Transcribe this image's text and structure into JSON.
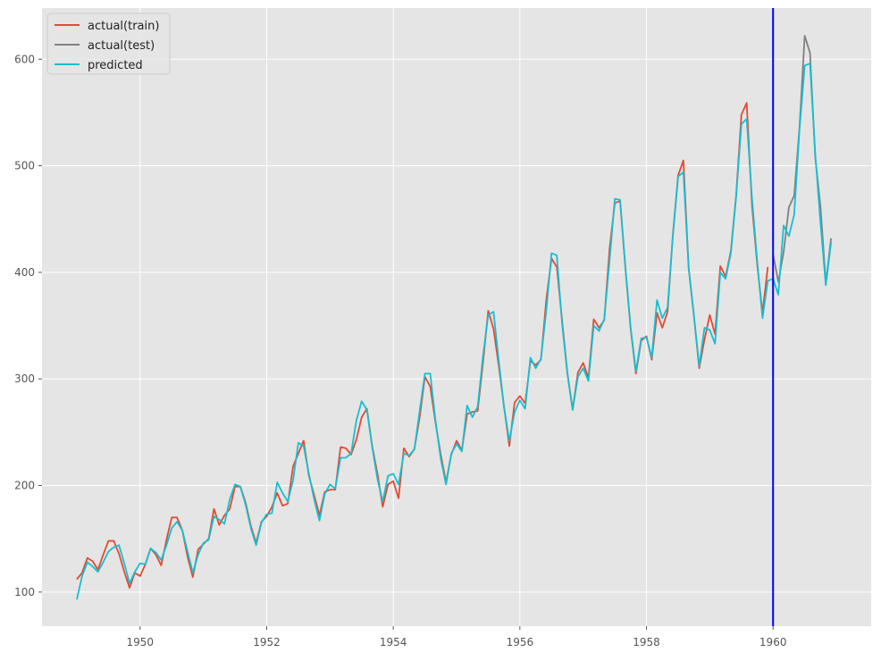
{
  "chart_data": {
    "type": "line",
    "title": "",
    "xlabel": "",
    "ylabel": "",
    "xlim": [
      1948.45,
      1961.55
    ],
    "ylim": [
      68,
      648
    ],
    "x_ticks": [
      1950,
      1952,
      1954,
      1956,
      1958,
      1960
    ],
    "y_ticks": [
      100,
      200,
      300,
      400,
      500,
      600
    ],
    "grid": true,
    "legend_position": "top-left",
    "vline": {
      "x": 1960.0,
      "color": "#0000ff"
    },
    "colors": {
      "background": "#e5e5e5",
      "grid": "#ffffff",
      "tick_label": "#555555",
      "vline": "#0000ff"
    },
    "x_start": 1949.0,
    "x_step": 0.08333333,
    "series": [
      {
        "name": "actual(train)",
        "color": "#e24a33",
        "start_index": 0,
        "values": [
          112,
          118,
          132,
          129,
          121,
          135,
          148,
          148,
          136,
          119,
          104,
          118,
          115,
          126,
          141,
          135,
          125,
          149,
          170,
          170,
          158,
          133,
          114,
          140,
          145,
          150,
          178,
          163,
          172,
          178,
          199,
          199,
          184,
          162,
          146,
          166,
          171,
          180,
          193,
          181,
          183,
          218,
          230,
          242,
          209,
          191,
          172,
          194,
          196,
          196,
          236,
          235,
          229,
          243,
          264,
          272,
          237,
          211,
          180,
          201,
          204,
          188,
          235,
          227,
          234,
          264,
          302,
          293,
          259,
          229,
          203,
          229,
          242,
          233,
          267,
          269,
          270,
          315,
          364,
          347,
          312,
          274,
          237,
          278,
          284,
          277,
          317,
          313,
          318,
          374,
          413,
          405,
          355,
          306,
          271,
          306,
          315,
          301,
          356,
          348,
          355,
          422,
          465,
          467,
          404,
          347,
          305,
          336,
          340,
          318,
          362,
          348,
          363,
          435,
          491,
          505,
          404,
          359,
          310,
          337,
          360,
          342,
          406,
          396,
          420,
          472,
          548,
          559,
          463,
          407,
          362,
          405
        ]
      },
      {
        "name": "actual(test)",
        "color": "#808080",
        "start_index": 132,
        "values": [
          417,
          391,
          419,
          461,
          472,
          535,
          622,
          606,
          508,
          461,
          390,
          432
        ]
      },
      {
        "name": "predicted",
        "color": "#17becf",
        "start_index": 0,
        "values": [
          93,
          115,
          128,
          124,
          119,
          128,
          138,
          142,
          144,
          127,
          108,
          119,
          127,
          126,
          141,
          137,
          130,
          144,
          160,
          166,
          158,
          138,
          118,
          135,
          146,
          149,
          171,
          168,
          164,
          187,
          201,
          199,
          182,
          160,
          144,
          165,
          173,
          174,
          203,
          193,
          185,
          205,
          240,
          237,
          211,
          187,
          167,
          192,
          201,
          197,
          226,
          226,
          230,
          261,
          279,
          271,
          236,
          206,
          185,
          209,
          211,
          201,
          230,
          228,
          234,
          270,
          305,
          305,
          261,
          225,
          201,
          230,
          239,
          232,
          275,
          264,
          274,
          321,
          360,
          363,
          317,
          273,
          242,
          269,
          280,
          272,
          320,
          310,
          319,
          364,
          418,
          416,
          352,
          305,
          271,
          302,
          310,
          298,
          350,
          345,
          356,
          411,
          469,
          468,
          405,
          348,
          307,
          338,
          339,
          320,
          374,
          357,
          367,
          434,
          490,
          494,
          404,
          359,
          312,
          348,
          346,
          333,
          400,
          394,
          418,
          471,
          539,
          544,
          470,
          410,
          357,
          392,
          394,
          379,
          444,
          434,
          454,
          533,
          594,
          596,
          511,
          446,
          388,
          428
        ]
      }
    ]
  }
}
